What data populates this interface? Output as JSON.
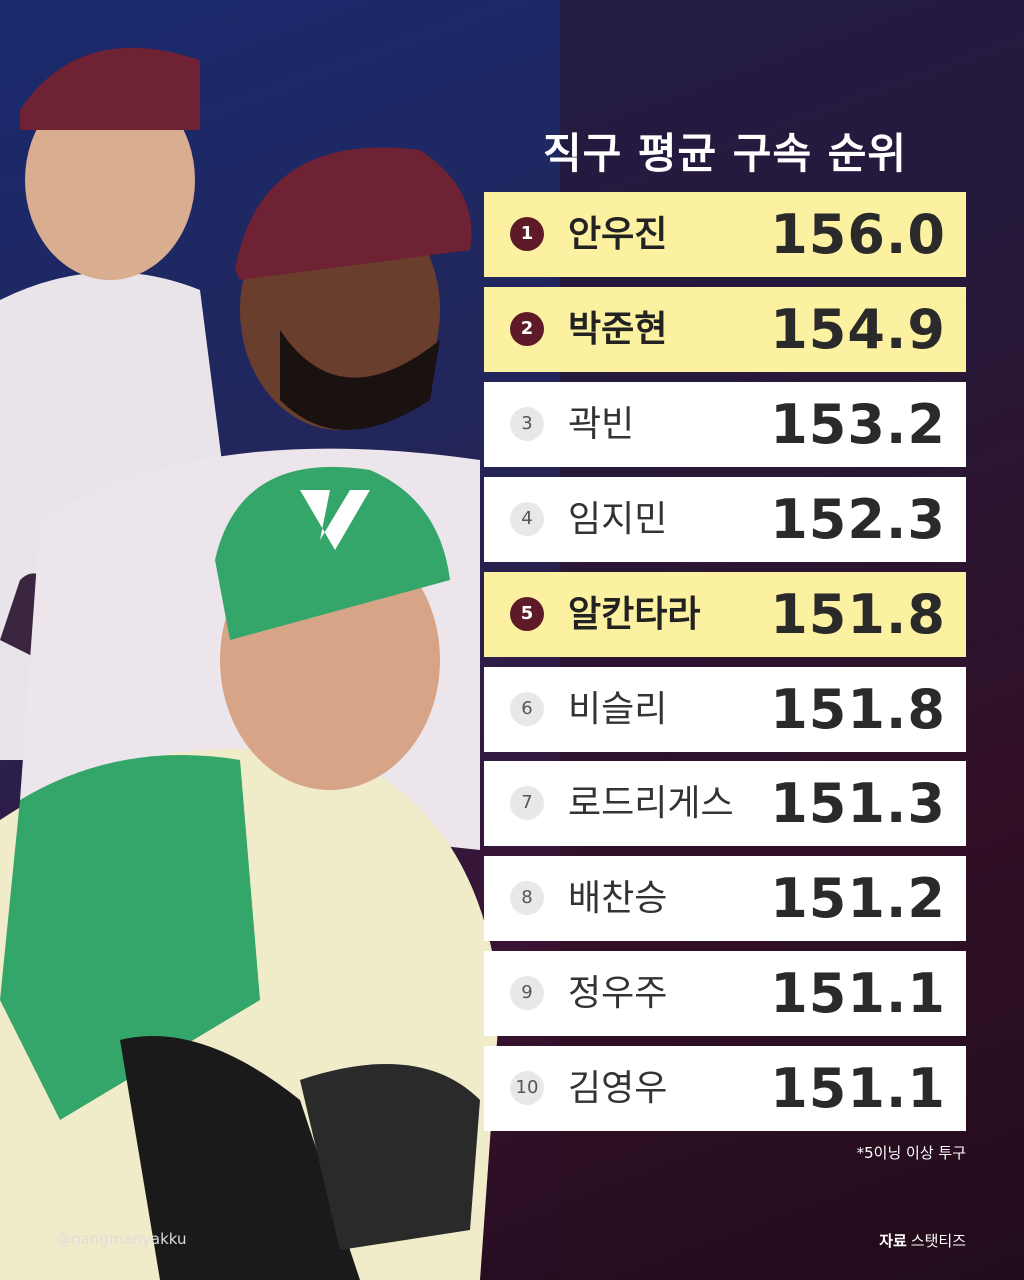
{
  "header": {
    "title": "직구 평균 구속 순위"
  },
  "table": {
    "rows": [
      {
        "rank": 1,
        "name": "안우진",
        "value": "156.0",
        "highlight": true
      },
      {
        "rank": 2,
        "name": "박준현",
        "value": "154.9",
        "highlight": true
      },
      {
        "rank": 3,
        "name": "곽빈",
        "value": "153.2",
        "highlight": false
      },
      {
        "rank": 4,
        "name": "임지민",
        "value": "152.3",
        "highlight": false
      },
      {
        "rank": 5,
        "name": "알칸타라",
        "value": "151.8",
        "highlight": true
      },
      {
        "rank": 6,
        "name": "비슬리",
        "value": "151.8",
        "highlight": false
      },
      {
        "rank": 7,
        "name": "로드리게스",
        "value": "151.3",
        "highlight": false
      },
      {
        "rank": 8,
        "name": "배찬승",
        "value": "151.2",
        "highlight": false
      },
      {
        "rank": 9,
        "name": "정우주",
        "value": "151.1",
        "highlight": false
      },
      {
        "rank": 10,
        "name": "김영우",
        "value": "151.1",
        "highlight": false
      }
    ]
  },
  "footer": {
    "note": "*5이닝 이상 투구",
    "handle": "@nangmanyakku",
    "source_label": "자료",
    "source": "스탯티즈"
  }
}
